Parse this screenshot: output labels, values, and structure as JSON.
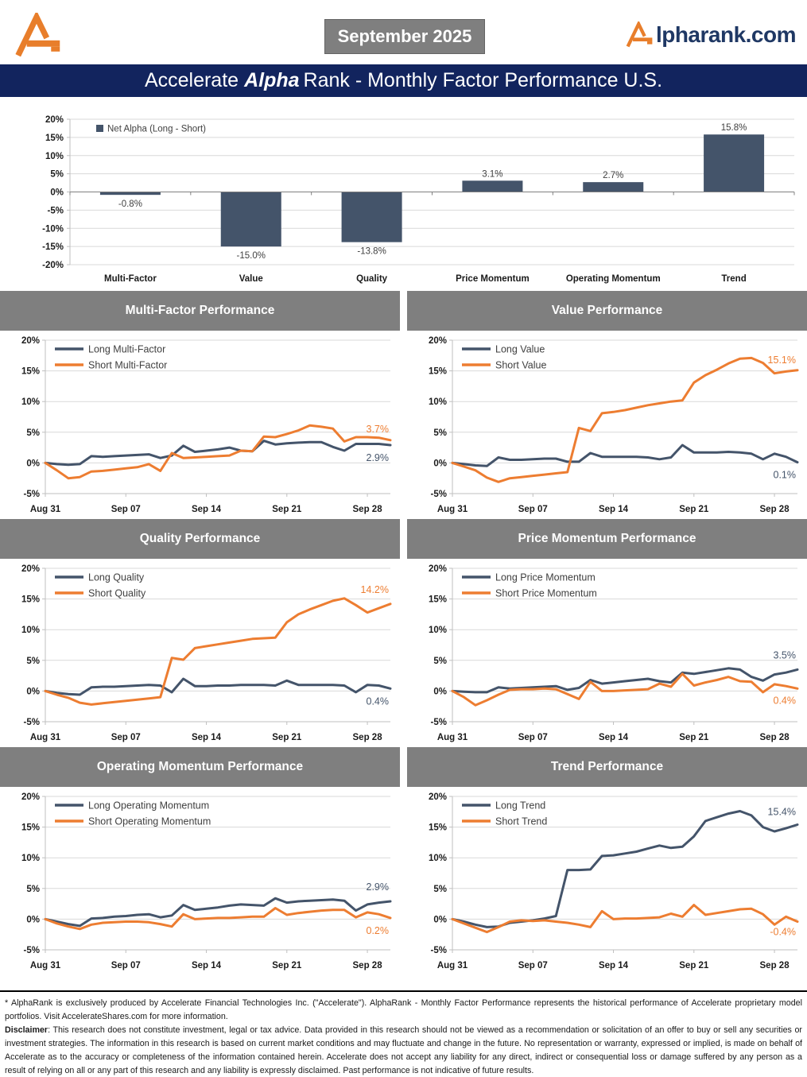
{
  "header": {
    "date_badge": "September 2025",
    "brand": {
      "icon": "accelerate-a-logo",
      "text": "lpharank.com"
    }
  },
  "banner": {
    "title_part1": "Accelerate",
    "title_part2": "Alpha",
    "title_part3": "Rank - Monthly Factor Performance U.S."
  },
  "colors": {
    "navy": "#44546A",
    "orange": "#ED7D31",
    "grid": "#D9D9D9",
    "axis_line": "#BFBFBF",
    "zero_line": "#808080",
    "tick_text": "#1A1A1A",
    "legend_text": "#404040",
    "panel_header_bg": "#7F7F7F",
    "banner_bg": "#12245E",
    "brand_navy": "#1F3864",
    "logo_orange": "#E87E2B"
  },
  "chart_data": [
    {
      "type": "bar",
      "legend_label": "Net Alpha (Long - Short)",
      "categories": [
        "Multi-Factor",
        "Value",
        "Quality",
        "Price Momentum",
        "Operating Momentum",
        "Trend"
      ],
      "values": [
        -0.8,
        -15.0,
        -13.8,
        3.1,
        2.7,
        15.8
      ],
      "labels": [
        "-0.8%",
        "-15.0%",
        "-13.8%",
        "3.1%",
        "2.7%",
        "15.8%"
      ],
      "ylim": [
        -20,
        20
      ],
      "ytick_step": 5,
      "bar_color": "navy",
      "grid": true,
      "legend_position": "top-left"
    },
    {
      "type": "line",
      "title": "Multi-Factor Performance",
      "x_tick_labels": [
        "Aug 31",
        "Sep 07",
        "Sep 14",
        "Sep 21",
        "Sep 28"
      ],
      "x_tick_idx": [
        0,
        7,
        14,
        21,
        28
      ],
      "x_max": 30,
      "ylim": [
        -5,
        20
      ],
      "ytick_step": 5,
      "grid": true,
      "legend_position": "top-left",
      "series": [
        {
          "name": "Long Multi-Factor",
          "color": "navy",
          "end_label": "2.9%",
          "label_dy": 20,
          "values": [
            0.0,
            -0.2,
            -0.3,
            -0.2,
            1.1,
            1.0,
            1.1,
            1.2,
            1.3,
            1.4,
            0.8,
            1.2,
            2.8,
            1.8,
            2.0,
            2.2,
            2.5,
            2.0,
            1.9,
            3.6,
            3.0,
            3.2,
            3.3,
            3.4,
            3.4,
            2.6,
            2.0,
            3.1,
            3.1,
            3.1,
            2.9
          ]
        },
        {
          "name": "Short Multi-Factor",
          "color": "orange",
          "end_label": "3.7%",
          "label_dy": -10,
          "values": [
            0.0,
            -1.2,
            -2.5,
            -2.3,
            -1.4,
            -1.3,
            -1.1,
            -0.9,
            -0.7,
            -0.2,
            -1.3,
            1.6,
            0.8,
            0.9,
            1.0,
            1.1,
            1.2,
            2.0,
            1.9,
            4.3,
            4.2,
            4.7,
            5.3,
            6.1,
            5.9,
            5.6,
            3.5,
            4.2,
            4.2,
            4.1,
            3.7
          ]
        }
      ]
    },
    {
      "type": "line",
      "title": "Value Performance",
      "x_tick_labels": [
        "Aug 31",
        "Sep 07",
        "Sep 14",
        "Sep 21",
        "Sep 28"
      ],
      "x_tick_idx": [
        0,
        7,
        14,
        21,
        28
      ],
      "x_max": 30,
      "ylim": [
        -5,
        20
      ],
      "ytick_step": 5,
      "grid": true,
      "legend_position": "top-left",
      "series": [
        {
          "name": "Long Value",
          "color": "navy",
          "end_label": "0.1%",
          "label_dy": 20,
          "values": [
            0.0,
            -0.2,
            -0.4,
            -0.5,
            0.9,
            0.5,
            0.5,
            0.6,
            0.7,
            0.7,
            0.2,
            0.2,
            1.6,
            1.0,
            1.0,
            1.0,
            1.0,
            0.9,
            0.6,
            0.9,
            2.9,
            1.7,
            1.7,
            1.7,
            1.8,
            1.7,
            1.5,
            0.6,
            1.5,
            1.0,
            0.1
          ]
        },
        {
          "name": "Short Value",
          "color": "orange",
          "end_label": "15.1%",
          "label_dy": -9,
          "values": [
            0.0,
            -0.6,
            -1.2,
            -2.4,
            -3.1,
            -2.5,
            -2.3,
            -2.1,
            -1.9,
            -1.7,
            -1.5,
            5.7,
            5.2,
            8.1,
            8.3,
            8.6,
            9.0,
            9.4,
            9.7,
            10.0,
            10.2,
            13.1,
            14.3,
            15.2,
            16.2,
            17.0,
            17.1,
            16.3,
            14.6,
            14.9,
            15.1
          ]
        }
      ]
    },
    {
      "type": "line",
      "title": "Quality Performance",
      "x_tick_labels": [
        "Aug 31",
        "Sep 07",
        "Sep 14",
        "Sep 21",
        "Sep 28"
      ],
      "x_tick_idx": [
        0,
        7,
        14,
        21,
        28
      ],
      "x_max": 30,
      "ylim": [
        -5,
        20
      ],
      "ytick_step": 5,
      "grid": true,
      "legend_position": "top-left",
      "series": [
        {
          "name": "Long Quality",
          "color": "navy",
          "end_label": "0.4%",
          "label_dy": 20,
          "values": [
            0.0,
            -0.3,
            -0.5,
            -0.6,
            0.6,
            0.7,
            0.7,
            0.8,
            0.9,
            1.0,
            0.9,
            -0.2,
            2.0,
            0.8,
            0.8,
            0.9,
            0.9,
            1.0,
            1.0,
            1.0,
            0.9,
            1.7,
            1.0,
            1.0,
            1.0,
            1.0,
            0.9,
            -0.2,
            1.0,
            0.9,
            0.4
          ]
        },
        {
          "name": "Short Quality",
          "color": "orange",
          "end_label": "14.2%",
          "label_dy": -14,
          "values": [
            0.0,
            -0.6,
            -1.1,
            -1.9,
            -2.2,
            -2.0,
            -1.8,
            -1.6,
            -1.4,
            -1.2,
            -1.0,
            5.4,
            5.1,
            7.0,
            7.3,
            7.6,
            7.9,
            8.2,
            8.5,
            8.6,
            8.7,
            11.2,
            12.5,
            13.3,
            14.0,
            14.7,
            15.1,
            14.0,
            12.8,
            13.5,
            14.2
          ]
        }
      ]
    },
    {
      "type": "line",
      "title": "Price Momentum Performance",
      "x_tick_labels": [
        "Aug 31",
        "Sep 07",
        "Sep 14",
        "Sep 21",
        "Sep 28"
      ],
      "x_tick_idx": [
        0,
        7,
        14,
        21,
        28
      ],
      "x_max": 30,
      "ylim": [
        -5,
        20
      ],
      "ytick_step": 5,
      "grid": true,
      "legend_position": "top-left",
      "series": [
        {
          "name": "Long Price Momentum",
          "color": "navy",
          "end_label": "3.5%",
          "label_dy": -14,
          "values": [
            0.0,
            -0.1,
            -0.2,
            -0.2,
            0.6,
            0.4,
            0.5,
            0.6,
            0.7,
            0.8,
            0.2,
            0.5,
            1.8,
            1.2,
            1.4,
            1.6,
            1.8,
            2.0,
            1.6,
            1.4,
            3.0,
            2.8,
            3.1,
            3.4,
            3.7,
            3.5,
            2.3,
            1.7,
            2.7,
            3.0,
            3.5
          ]
        },
        {
          "name": "Short Price Momentum",
          "color": "orange",
          "end_label": "0.4%",
          "label_dy": 19,
          "values": [
            0.0,
            -1.0,
            -2.3,
            -1.5,
            -0.6,
            0.2,
            0.3,
            0.3,
            0.4,
            0.3,
            -0.5,
            -1.3,
            1.5,
            0.0,
            0.0,
            0.1,
            0.2,
            0.3,
            1.2,
            0.7,
            2.8,
            0.9,
            1.4,
            1.8,
            2.3,
            1.6,
            1.5,
            -0.2,
            1.1,
            0.8,
            0.4
          ]
        }
      ]
    },
    {
      "type": "line",
      "title": "Operating Momentum Performance",
      "x_tick_labels": [
        "Aug 31",
        "Sep 07",
        "Sep 14",
        "Sep 21",
        "Sep 28"
      ],
      "x_tick_idx": [
        0,
        7,
        14,
        21,
        28
      ],
      "x_max": 30,
      "ylim": [
        -5,
        20
      ],
      "ytick_step": 5,
      "grid": true,
      "legend_position": "top-left",
      "series": [
        {
          "name": "Long Operating Momentum",
          "color": "navy",
          "end_label": "2.9%",
          "label_dy": -14,
          "values": [
            0.0,
            -0.4,
            -0.8,
            -1.1,
            0.1,
            0.2,
            0.4,
            0.5,
            0.7,
            0.8,
            0.3,
            0.6,
            2.3,
            1.5,
            1.7,
            1.9,
            2.2,
            2.4,
            2.3,
            2.2,
            3.4,
            2.7,
            2.9,
            3.0,
            3.1,
            3.2,
            3.0,
            1.4,
            2.4,
            2.7,
            2.9
          ]
        },
        {
          "name": "Short Operating Momentum",
          "color": "orange",
          "end_label": "0.2%",
          "label_dy": 20,
          "values": [
            0.0,
            -0.7,
            -1.2,
            -1.6,
            -0.9,
            -0.6,
            -0.5,
            -0.4,
            -0.4,
            -0.5,
            -0.8,
            -1.2,
            0.8,
            0.0,
            0.1,
            0.2,
            0.2,
            0.3,
            0.4,
            0.4,
            1.8,
            0.7,
            1.0,
            1.2,
            1.4,
            1.5,
            1.5,
            0.3,
            1.1,
            0.8,
            0.2
          ]
        }
      ]
    },
    {
      "type": "line",
      "title": "Trend Performance",
      "x_tick_labels": [
        "Aug 31",
        "Sep 07",
        "Sep 14",
        "Sep 21",
        "Sep 28"
      ],
      "x_tick_idx": [
        0,
        7,
        14,
        21,
        28
      ],
      "x_max": 30,
      "ylim": [
        -5,
        20
      ],
      "ytick_step": 5,
      "grid": true,
      "legend_position": "top-left",
      "series": [
        {
          "name": "Long Trend",
          "color": "navy",
          "end_label": "15.4%",
          "label_dy": -12,
          "values": [
            0.0,
            -0.4,
            -0.9,
            -1.3,
            -1.2,
            -0.6,
            -0.4,
            -0.2,
            0.1,
            0.5,
            8.0,
            8.0,
            8.1,
            10.3,
            10.4,
            10.7,
            11.0,
            11.5,
            12.0,
            11.6,
            11.8,
            13.5,
            16.0,
            16.6,
            17.2,
            17.6,
            16.9,
            15.0,
            14.3,
            14.8,
            15.4
          ]
        },
        {
          "name": "Short Trend",
          "color": "orange",
          "end_label": "-0.4%",
          "label_dy": 17,
          "values": [
            0.0,
            -0.7,
            -1.4,
            -2.1,
            -1.3,
            -0.4,
            -0.2,
            -0.3,
            -0.2,
            -0.4,
            -0.6,
            -0.9,
            -1.3,
            1.3,
            0.0,
            0.1,
            0.1,
            0.2,
            0.3,
            0.9,
            0.4,
            2.3,
            0.7,
            1.0,
            1.3,
            1.6,
            1.7,
            0.8,
            -0.9,
            0.4,
            -0.4
          ]
        }
      ]
    }
  ],
  "footer": {
    "note": "* AlphaRank is exclusively produced by Accelerate Financial Technologies Inc. (\"Accelerate\"). AlphaRank - Monthly Factor Performance represents the historical performance of Accelerate proprietary model portfolios. Visit AccelerateShares.com for more information.",
    "disclaimer_label": "Disclaimer",
    "disclaimer_text": ": This research does not constitute investment, legal or tax advice. Data provided in this research should not be viewed as a recommendation or solicitation of an offer to buy or sell any securities or investment strategies. The information in this research is based on current market conditions and may fluctuate and change in the future. No representation or warranty, expressed or implied, is made on behalf of Accelerate as to the accuracy or completeness of the information contained herein. Accelerate does not accept any liability for any direct, indirect or consequential loss or damage suffered by any person as a result of relying on all or any part of this research and any liability is expressly disclaimed. Past performance is not indicative of future results."
  }
}
